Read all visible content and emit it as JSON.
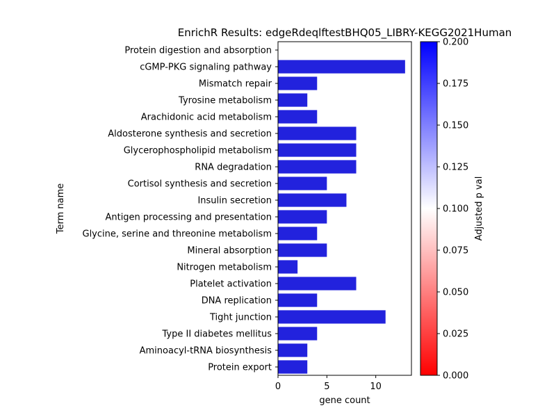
{
  "chart_data": {
    "type": "bar",
    "orientation": "horizontal",
    "title": "EnrichR Results: edgeRdeqlftestBHQ05_LIBRY-KEGG2021Human",
    "xlabel": "gene count",
    "ylabel": "Term name",
    "xlim": [
      0,
      13.65
    ],
    "xticks": [
      0,
      5,
      10
    ],
    "categories": [
      "Protein digestion and absorption",
      "cGMP-PKG signaling pathway",
      "Mismatch repair",
      "Tyrosine metabolism",
      "Arachidonic acid metabolism",
      "Aldosterone synthesis and secretion",
      "Glycerophospholipid metabolism",
      "RNA degradation",
      "Cortisol synthesis and secretion",
      "Insulin secretion",
      "Antigen processing and presentation",
      "Glycine, serine and threonine metabolism",
      "Mineral absorption",
      "Nitrogen metabolism",
      "Platelet activation",
      "DNA replication",
      "Tight junction",
      "Type II diabetes mellitus",
      "Aminoacyl-tRNA biosynthesis",
      "Protein export"
    ],
    "values": [
      0,
      13,
      4,
      3,
      4,
      8,
      8,
      8,
      5,
      7,
      5,
      4,
      5,
      2,
      8,
      4,
      11,
      4,
      3,
      3
    ],
    "bar_color": "#2222dd",
    "colorbar": {
      "label": "Adjusted p val",
      "range": [
        0,
        0.2
      ],
      "ticks": [
        "0.000",
        "0.025",
        "0.050",
        "0.075",
        "0.100",
        "0.125",
        "0.150",
        "0.175",
        "0.200"
      ],
      "colormap": [
        "#ff0000",
        "#ffffff",
        "#0000ff"
      ]
    },
    "grid": false,
    "legend": "none"
  }
}
